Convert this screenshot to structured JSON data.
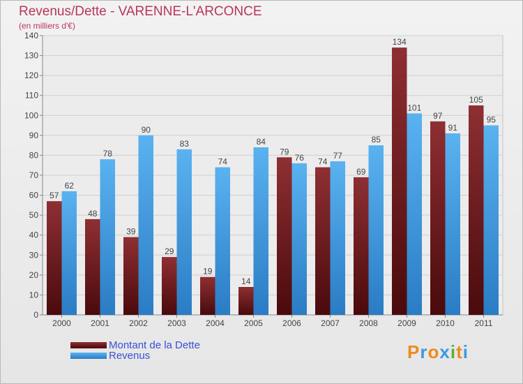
{
  "title": "Revenus/Dette - VARENNE-L'ARCONCE",
  "subtitle": "(en milliers d'€)",
  "chart_data": {
    "type": "bar",
    "categories": [
      "2000",
      "2001",
      "2002",
      "2003",
      "2004",
      "2005",
      "2006",
      "2007",
      "2008",
      "2009",
      "2010",
      "2011"
    ],
    "series": [
      {
        "name": "Montant de la Dette",
        "color": "#7a1e22",
        "values": [
          57,
          48,
          39,
          29,
          19,
          14,
          79,
          74,
          69,
          134,
          97,
          105
        ]
      },
      {
        "name": "Revenus",
        "color": "#3a9ae0",
        "values": [
          62,
          78,
          90,
          83,
          74,
          84,
          76,
          77,
          85,
          101,
          91,
          95
        ]
      }
    ],
    "ylim": [
      0,
      140
    ],
    "yticks": [
      0,
      10,
      20,
      30,
      40,
      50,
      60,
      70,
      80,
      90,
      100,
      110,
      120,
      130,
      140
    ],
    "grid": true,
    "legend": "bottom-left"
  },
  "logo": {
    "letters": [
      "P",
      "r",
      "o",
      "x",
      "i",
      "t",
      "i"
    ],
    "colors": [
      "#f08a1c",
      "#3a9ae0",
      "#f08a1c",
      "#3a9ae0",
      "#5ab030",
      "#f08a1c",
      "#3a9ae0"
    ]
  }
}
